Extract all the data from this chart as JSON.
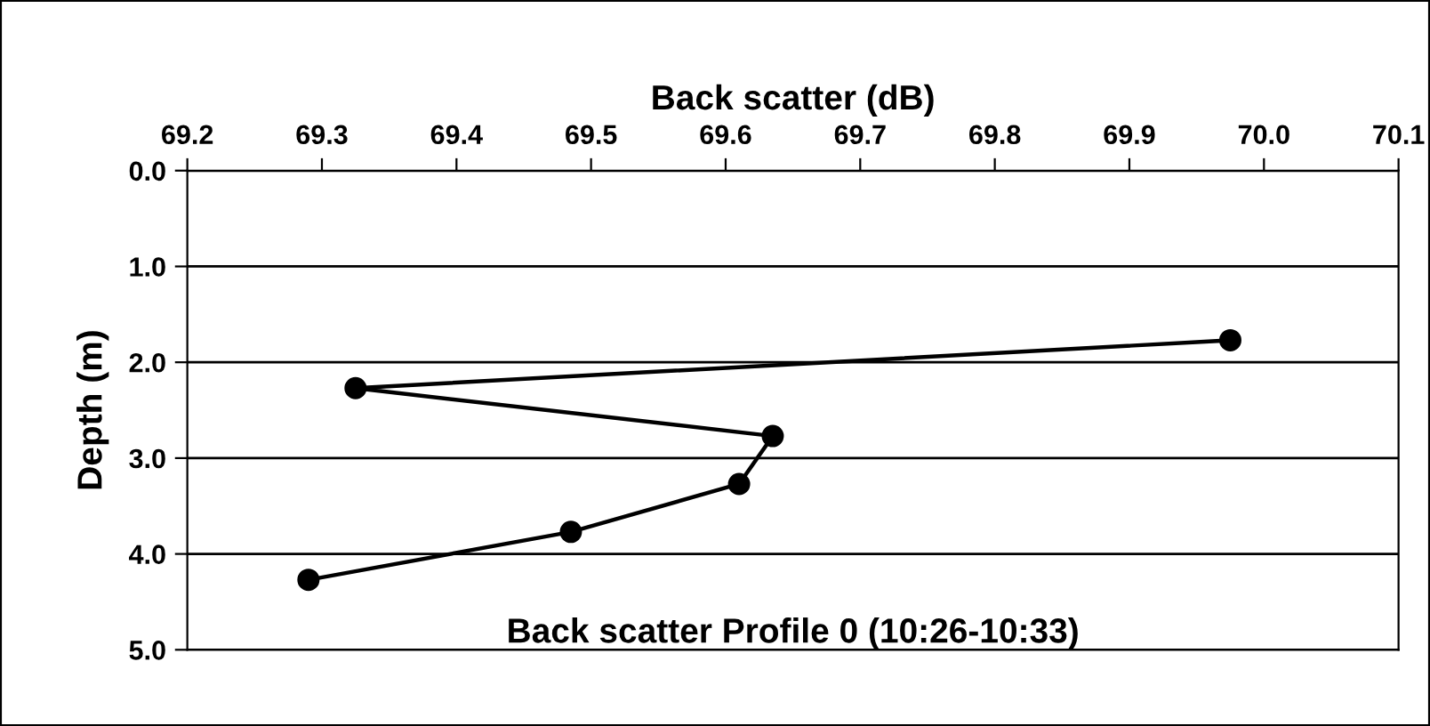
{
  "chart_data": {
    "type": "line",
    "title": "Back scatter Profile 0 (10:26-10:33)",
    "xlabel": "Back scatter (dB)",
    "ylabel": "Depth (m)",
    "series": [
      {
        "color": "#000000",
        "x": [
          69.975,
          69.325,
          69.635,
          69.61,
          69.485,
          69.29
        ],
        "values": [
          1.77,
          2.27,
          2.77,
          3.27,
          3.77,
          4.27
        ]
      }
    ],
    "xlim": [
      69.2,
      70.1
    ],
    "xticks": [
      {
        "value": 69.2,
        "label": "69.2"
      },
      {
        "value": 69.3,
        "label": "69.3"
      },
      {
        "value": 69.4,
        "label": "69.4"
      },
      {
        "value": 69.5,
        "label": "69.5"
      },
      {
        "value": 69.6,
        "label": "69.6"
      },
      {
        "value": 69.7,
        "label": "69.7"
      },
      {
        "value": 69.8,
        "label": "69.8"
      },
      {
        "value": 69.9,
        "label": "69.9"
      },
      {
        "value": 70.0,
        "label": "70.0"
      },
      {
        "value": 70.1,
        "label": "70.1"
      }
    ],
    "ylim": [
      5.0,
      0.0
    ],
    "yticks": [
      {
        "value": 0,
        "label": "0.0"
      },
      {
        "value": 1,
        "label": "1.0"
      },
      {
        "value": 2,
        "label": "2.0"
      },
      {
        "value": 3,
        "label": "3.0"
      },
      {
        "value": 4,
        "label": "4.0"
      },
      {
        "value": 5,
        "label": "5.0"
      }
    ],
    "grid": "y",
    "marker": "circle",
    "line_style": "solid",
    "legend": false
  }
}
